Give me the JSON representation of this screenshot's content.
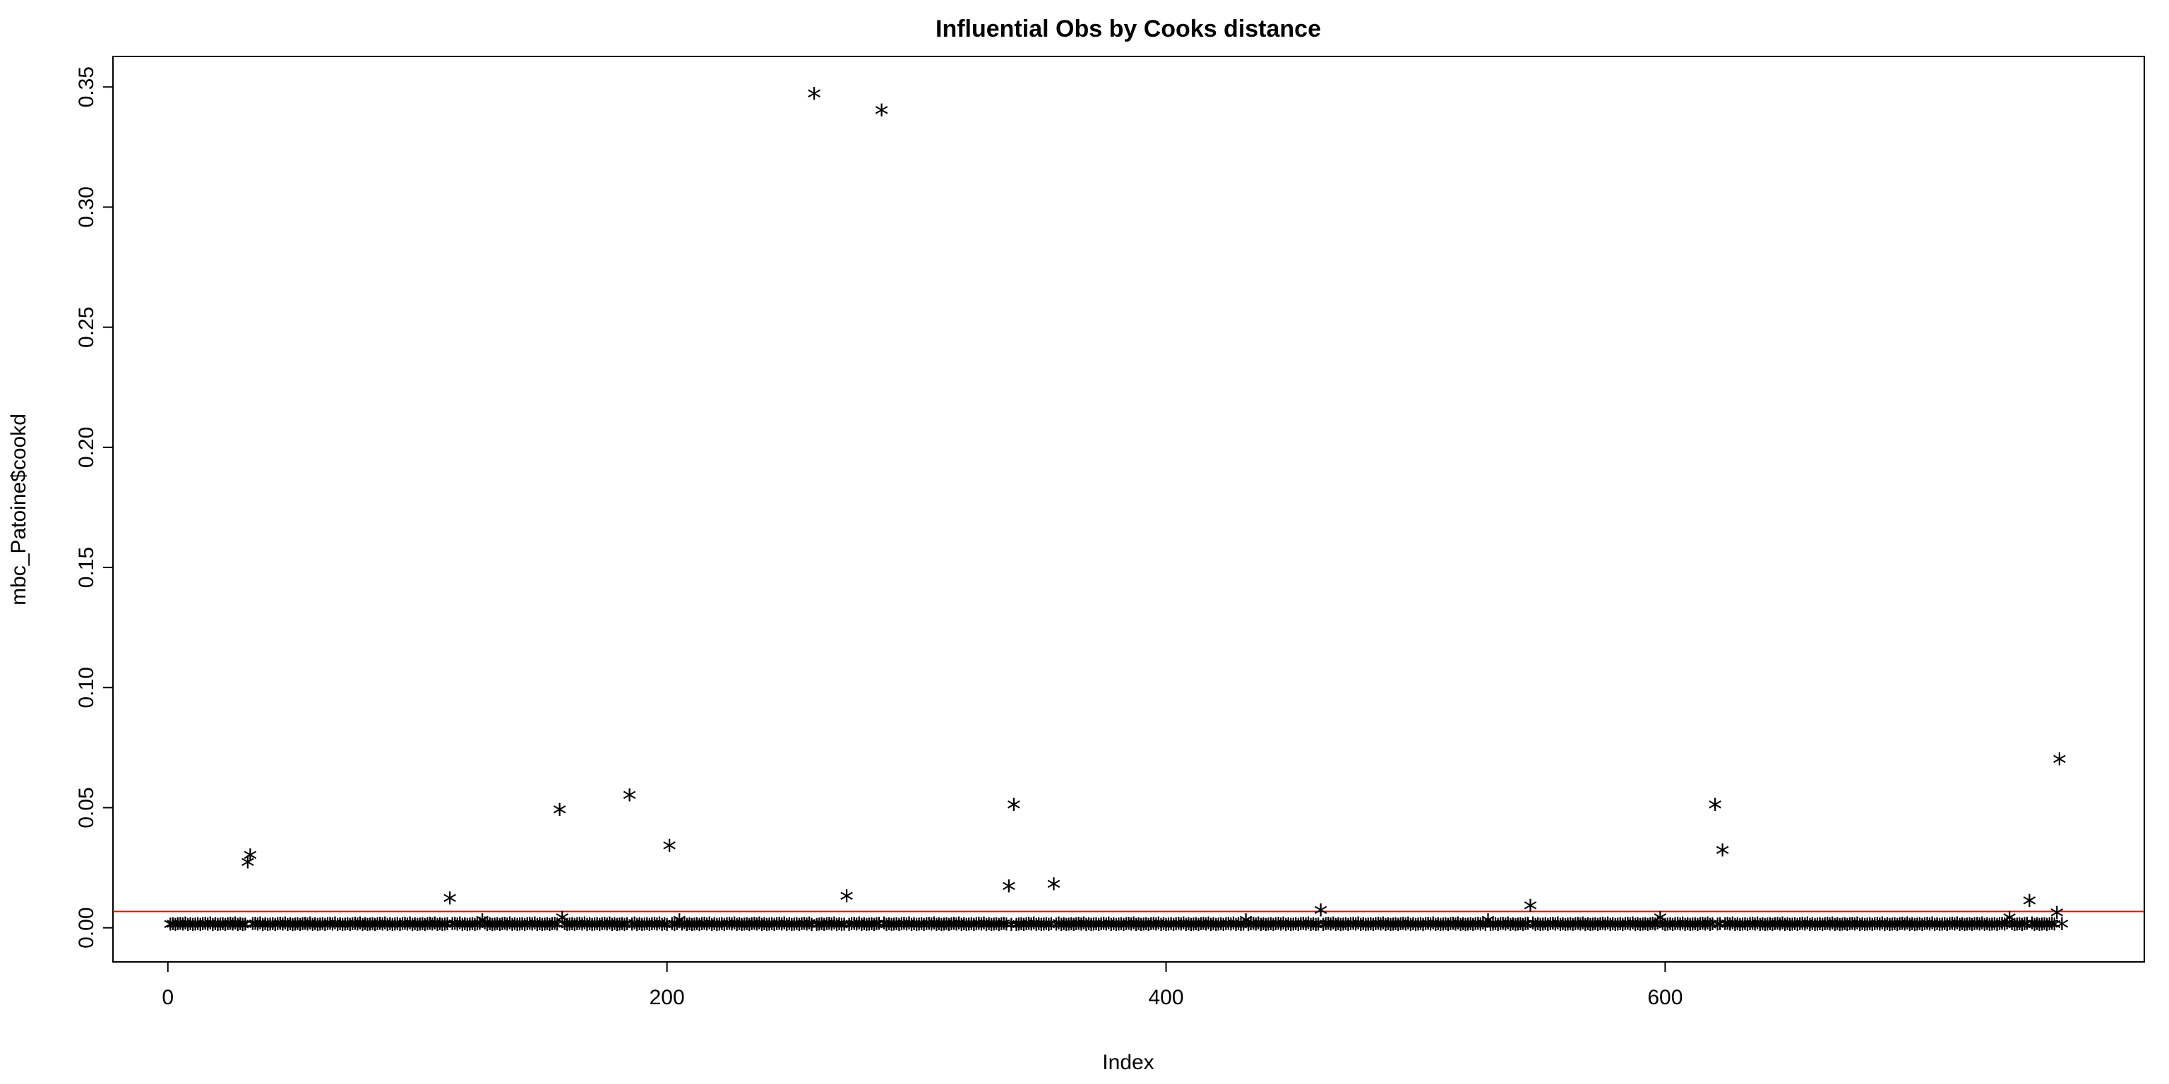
{
  "chart_data": {
    "type": "scatter",
    "title": "Influential Obs by Cooks distance",
    "xlabel": "Index",
    "ylabel": "mbc_Patoine$cookd",
    "xlim": [
      -22,
      792
    ],
    "ylim": [
      -0.0142,
      0.3627
    ],
    "x_ticks": [
      0,
      200,
      400,
      600
    ],
    "y_ticks": [
      0.0,
      0.05,
      0.1,
      0.15,
      0.2,
      0.25,
      0.3,
      0.35
    ],
    "y_tick_labels": [
      "0.00",
      "0.05",
      "0.10",
      "0.15",
      "0.20",
      "0.25",
      "0.30",
      "0.35"
    ],
    "marker": "*",
    "marker_color": "#000000",
    "grid": false,
    "legend": "none",
    "n_points": 759,
    "base_values": [
      0.0,
      0.0002,
      0.0004,
      0.0001,
      0.0003,
      0.0005,
      0.0002,
      0.0006,
      0.0001,
      0.0003
    ],
    "highlight_points": [
      {
        "x": 32,
        "y": 0.026
      },
      {
        "x": 33,
        "y": 0.029
      },
      {
        "x": 113,
        "y": 0.011
      },
      {
        "x": 126,
        "y": 0.002
      },
      {
        "x": 157,
        "y": 0.048
      },
      {
        "x": 158,
        "y": 0.003
      },
      {
        "x": 185,
        "y": 0.054
      },
      {
        "x": 201,
        "y": 0.033
      },
      {
        "x": 205,
        "y": 0.002
      },
      {
        "x": 259,
        "y": 0.346
      },
      {
        "x": 272,
        "y": 0.012
      },
      {
        "x": 286,
        "y": 0.339
      },
      {
        "x": 337,
        "y": 0.016
      },
      {
        "x": 339,
        "y": 0.05
      },
      {
        "x": 355,
        "y": 0.017
      },
      {
        "x": 432,
        "y": 0.002
      },
      {
        "x": 462,
        "y": 0.006
      },
      {
        "x": 529,
        "y": 0.002
      },
      {
        "x": 546,
        "y": 0.008
      },
      {
        "x": 598,
        "y": 0.003
      },
      {
        "x": 620,
        "y": 0.05
      },
      {
        "x": 623,
        "y": 0.031
      },
      {
        "x": 738,
        "y": 0.003
      },
      {
        "x": 746,
        "y": 0.01
      },
      {
        "x": 757,
        "y": 0.005
      },
      {
        "x": 758,
        "y": 0.069
      }
    ],
    "reference_line": {
      "y": 0.0068,
      "color": "#ff0000"
    }
  }
}
